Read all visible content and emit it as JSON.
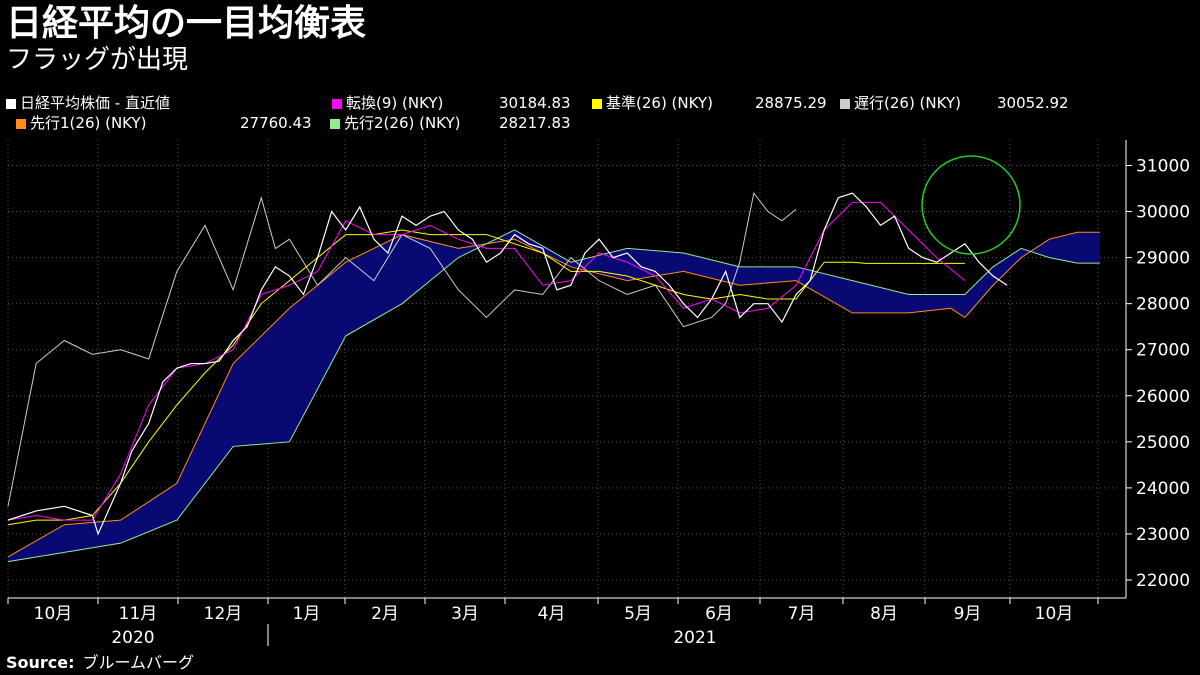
{
  "title": "日経平均の一目均衡表",
  "subtitle": "フラッグが出現",
  "legend": [
    {
      "name": "日経平均株価 - 直近値",
      "value": "",
      "color": "#ffffff"
    },
    {
      "name": "転換(9) (NKY)",
      "value": "30184.83",
      "color": "#ff00ff"
    },
    {
      "name": "基準(26) (NKY)",
      "value": "28875.29",
      "color": "#ffff00"
    },
    {
      "name": "遅行(26) (NKY)",
      "value": "30052.92",
      "color": "#cccccc"
    },
    {
      "name": "先行1(26) (NKY)",
      "value": "27760.43",
      "color": "#ff8c1a"
    },
    {
      "name": "先行2(26) (NKY)",
      "value": "28217.83",
      "color": "#90ee90"
    }
  ],
  "source_label": "Source:",
  "source_text": "ブルームバーグ",
  "chart_data": {
    "type": "line",
    "title": "日経平均の一目均衡表",
    "ylim": [
      22000,
      31000
    ],
    "y_ticks": [
      "31000",
      "30000",
      "29000",
      "28000",
      "27000",
      "26000",
      "25000",
      "24000",
      "23000",
      "22000"
    ],
    "x_ticks": [
      "10月",
      "11月",
      "12月",
      "1月",
      "2月",
      "3月",
      "4月",
      "5月",
      "6月",
      "7月",
      "8月",
      "9月",
      "10月"
    ],
    "year_labels": [
      "2020",
      "2021"
    ],
    "grid": true,
    "x_range_days": [
      0,
      388
    ],
    "series": [
      {
        "name": "日経平均株価 - 直近値",
        "color": "#ffffff",
        "x": [
          0,
          10,
          20,
          30,
          32,
          40,
          44,
          50,
          55,
          60,
          65,
          70,
          75,
          80,
          85,
          90,
          95,
          100,
          105,
          110,
          115,
          120,
          125,
          130,
          135,
          140,
          145,
          150,
          155,
          160,
          165,
          170,
          175,
          180,
          185,
          190,
          195,
          200,
          205,
          210,
          215,
          220,
          225,
          230,
          235,
          240,
          245,
          250,
          255,
          260,
          265,
          270,
          275,
          280,
          285,
          290,
          295,
          300,
          305,
          310,
          315,
          320,
          325,
          330,
          335,
          340,
          345,
          350,
          355
        ],
        "y": [
          23300,
          23500,
          23600,
          23400,
          23000,
          24100,
          24800,
          25400,
          26300,
          26600,
          26700,
          26700,
          26750,
          27200,
          27500,
          28300,
          28800,
          28600,
          28200,
          29000,
          30000,
          29600,
          30100,
          29400,
          29100,
          29900,
          29700,
          29900,
          30000,
          29600,
          29400,
          28900,
          29100,
          29500,
          29300,
          29200,
          28300,
          28400,
          29100,
          29400,
          29000,
          29100,
          28800,
          28700,
          28400,
          28000,
          27700,
          28100,
          28700,
          27700,
          28000,
          28000,
          27600,
          28200,
          28500,
          29600,
          30300,
          30400,
          30100,
          29700,
          29900,
          29200,
          29000,
          28900,
          29100,
          29300,
          28900,
          28600,
          28400
        ]
      },
      {
        "name": "転換(9) (NKY)",
        "color": "#ff00ff",
        "x": [
          0,
          10,
          20,
          30,
          40,
          50,
          60,
          70,
          80,
          90,
          100,
          110,
          120,
          130,
          140,
          150,
          160,
          170,
          180,
          190,
          200,
          210,
          220,
          230,
          240,
          250,
          260,
          270,
          280,
          290,
          300,
          310,
          320,
          330,
          340
        ],
        "y": [
          23300,
          23400,
          23300,
          23300,
          24300,
          25800,
          26600,
          26700,
          27000,
          28200,
          28400,
          28700,
          29800,
          29500,
          29500,
          29700,
          29400,
          29200,
          29200,
          28400,
          28500,
          29100,
          28900,
          28600,
          27900,
          28100,
          27800,
          27900,
          28400,
          29600,
          30200,
          30200,
          29600,
          29000,
          28500
        ]
      },
      {
        "name": "基準(26) (NKY)",
        "color": "#ffff00",
        "x": [
          0,
          10,
          20,
          30,
          40,
          50,
          60,
          70,
          80,
          90,
          100,
          110,
          120,
          130,
          140,
          150,
          160,
          170,
          180,
          190,
          200,
          210,
          220,
          230,
          240,
          250,
          260,
          270,
          280,
          290,
          300,
          305,
          340
        ],
        "y": [
          23200,
          23300,
          23300,
          23400,
          24100,
          25000,
          25800,
          26500,
          27100,
          28000,
          28500,
          29000,
          29500,
          29500,
          29600,
          29500,
          29500,
          29500,
          29300,
          29100,
          28700,
          28700,
          28600,
          28400,
          28200,
          28100,
          28200,
          28100,
          28100,
          28900,
          28900,
          28875,
          28875
        ]
      },
      {
        "name": "遅行(26) (NKY)",
        "color": "#cccccc",
        "x": [
          0,
          10,
          20,
          30,
          40,
          50,
          60,
          70,
          80,
          90,
          95,
          100,
          110,
          120,
          130,
          140,
          150,
          160,
          170,
          180,
          190,
          200,
          210,
          220,
          230,
          240,
          250,
          255,
          260,
          265,
          270,
          275,
          280
        ],
        "y": [
          23600,
          26700,
          27200,
          26900,
          27000,
          26800,
          28700,
          29700,
          28300,
          30300,
          29200,
          29400,
          28400,
          29000,
          28500,
          29500,
          29200,
          28300,
          27700,
          28300,
          28200,
          29000,
          28500,
          28200,
          28400,
          27500,
          27700,
          28000,
          28900,
          30400,
          30000,
          29800,
          30050
        ]
      },
      {
        "name": "先行1(26) (NKY)",
        "color": "#ff8c1a",
        "x": [
          0,
          20,
          40,
          60,
          80,
          100,
          120,
          140,
          160,
          180,
          200,
          220,
          240,
          260,
          280,
          300,
          320,
          335,
          340,
          350,
          360,
          370,
          380,
          388
        ],
        "y": [
          22500,
          23200,
          23300,
          24100,
          26700,
          27900,
          28900,
          29500,
          29200,
          29400,
          28800,
          28500,
          28700,
          28400,
          28500,
          27800,
          27800,
          27900,
          27700,
          28400,
          29000,
          29400,
          29550,
          29550
        ]
      },
      {
        "name": "先行2(26) (NKY)",
        "color": "#90ee90",
        "x": [
          0,
          20,
          40,
          60,
          80,
          100,
          120,
          140,
          160,
          180,
          200,
          220,
          240,
          260,
          280,
          300,
          320,
          335,
          340,
          350,
          360,
          370,
          380,
          388
        ],
        "y": [
          22400,
          22600,
          22800,
          23300,
          24900,
          25000,
          27300,
          28000,
          29000,
          29600,
          28900,
          29200,
          29100,
          28800,
          28800,
          28500,
          28200,
          28200,
          28200,
          28800,
          29200,
          29000,
          28880,
          28880
        ]
      }
    ]
  }
}
